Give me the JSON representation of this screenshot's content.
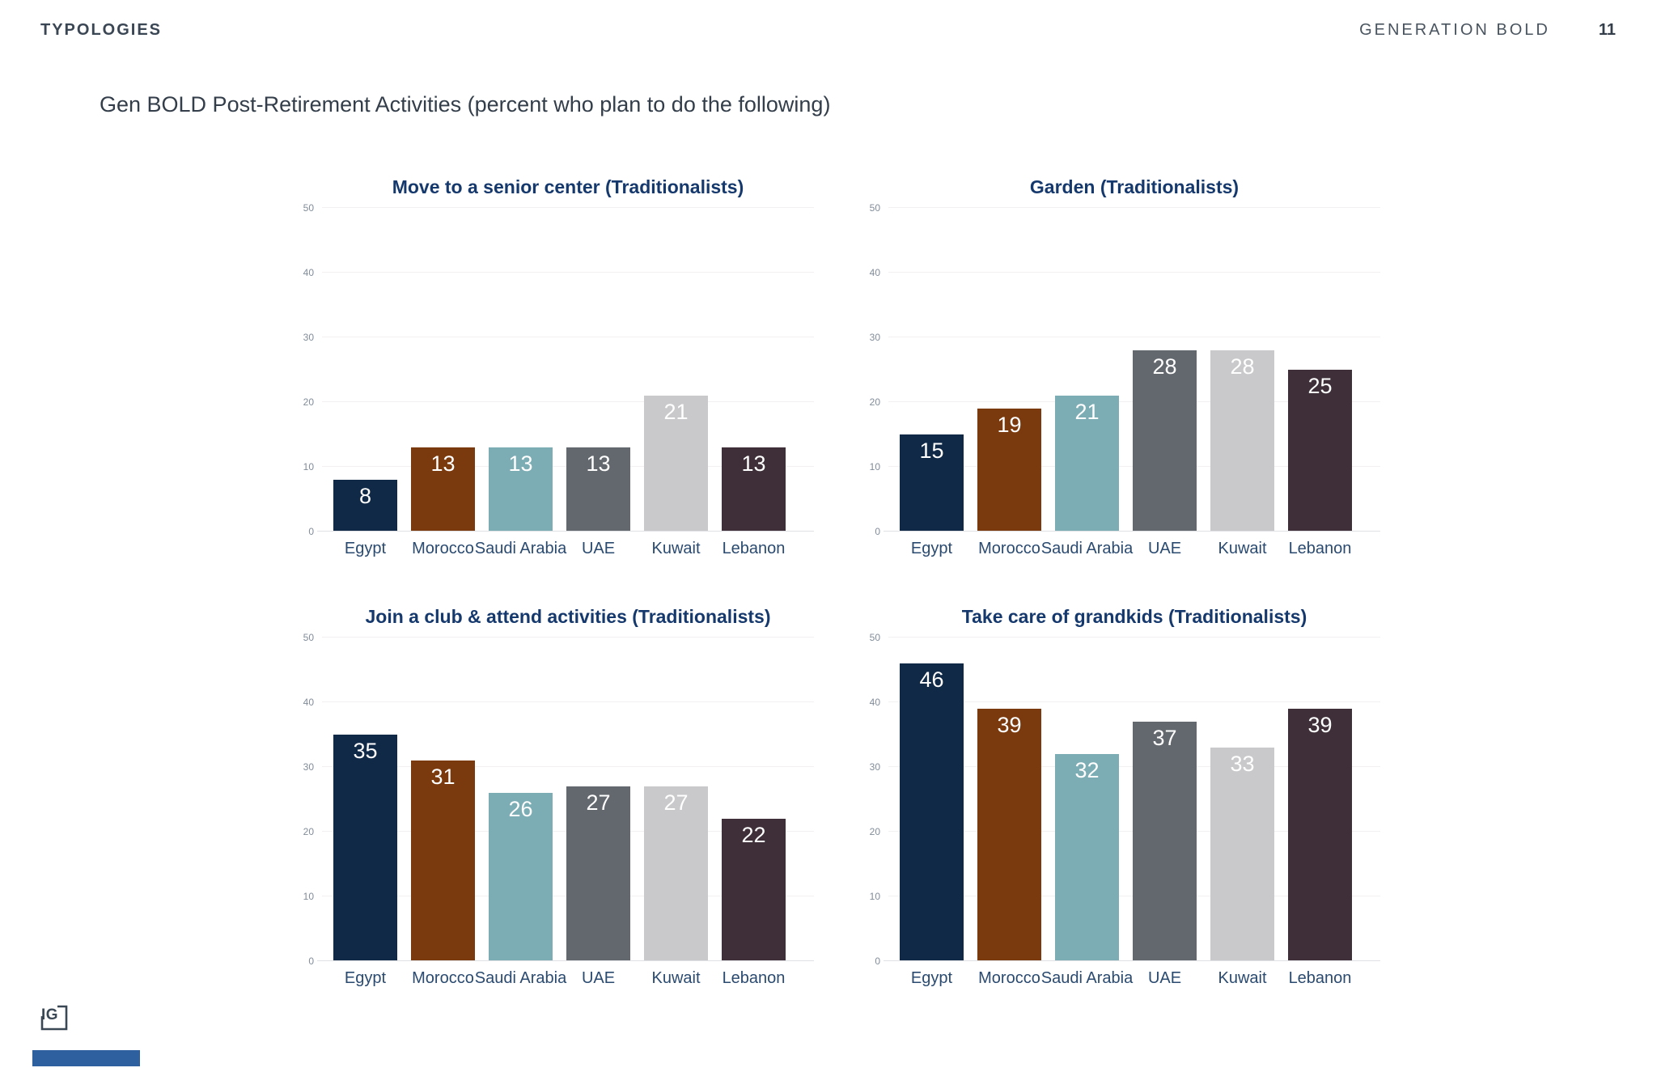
{
  "header": {
    "section_label": "TYPOLOGIES",
    "brand": "GENERATION BOLD",
    "page_number": "11"
  },
  "page_title": "Gen BOLD Post-Retirement Activities (percent who plan to do the following)",
  "logo_text": "IG",
  "palette": {
    "title_navy": "#16396d",
    "label_navy": "#2a4a70",
    "tick_gray": "#818c99",
    "header_slate": "#3b4654",
    "accent_bar_blue": "#2e5f9e",
    "bar_colors": [
      "#102947",
      "#7b3a0d",
      "#7cadb4",
      "#63686e",
      "#c9c9cc",
      "#3e2f38"
    ]
  },
  "chart_data": [
    {
      "type": "bar",
      "title": "Move to a senior center (Traditionalists)",
      "categories": [
        "Egypt",
        "Morocco",
        "Saudi Arabia",
        "UAE",
        "Kuwait",
        "Lebanon"
      ],
      "values": [
        8,
        13,
        13,
        13,
        21,
        13
      ],
      "xlabel": "",
      "ylabel": "",
      "ylim": [
        0,
        50
      ],
      "yticks": [
        0,
        10,
        20,
        30,
        40,
        50
      ],
      "grid": true,
      "legend": "none",
      "value_labels": "inside-top-white"
    },
    {
      "type": "bar",
      "title": "Garden (Traditionalists)",
      "categories": [
        "Egypt",
        "Morocco",
        "Saudi Arabia",
        "UAE",
        "Kuwait",
        "Lebanon"
      ],
      "values": [
        15,
        19,
        21,
        28,
        28,
        25
      ],
      "xlabel": "",
      "ylabel": "",
      "ylim": [
        0,
        50
      ],
      "yticks": [
        0,
        10,
        20,
        30,
        40,
        50
      ],
      "grid": true,
      "legend": "none",
      "value_labels": "inside-top-white"
    },
    {
      "type": "bar",
      "title": "Join a club & attend activities (Traditionalists)",
      "categories": [
        "Egypt",
        "Morocco",
        "Saudi Arabia",
        "UAE",
        "Kuwait",
        "Lebanon"
      ],
      "values": [
        35,
        31,
        26,
        27,
        27,
        22
      ],
      "xlabel": "",
      "ylabel": "",
      "ylim": [
        0,
        50
      ],
      "yticks": [
        0,
        10,
        20,
        30,
        40,
        50
      ],
      "grid": true,
      "legend": "none",
      "value_labels": "inside-top-white"
    },
    {
      "type": "bar",
      "title": "Take care of grandkids (Traditionalists)",
      "categories": [
        "Egypt",
        "Morocco",
        "Saudi Arabia",
        "UAE",
        "Kuwait",
        "Lebanon"
      ],
      "values": [
        46,
        39,
        32,
        37,
        33,
        39
      ],
      "xlabel": "",
      "ylabel": "",
      "ylim": [
        0,
        50
      ],
      "yticks": [
        0,
        10,
        20,
        30,
        40,
        50
      ],
      "grid": true,
      "legend": "none",
      "value_labels": "inside-top-white"
    }
  ]
}
